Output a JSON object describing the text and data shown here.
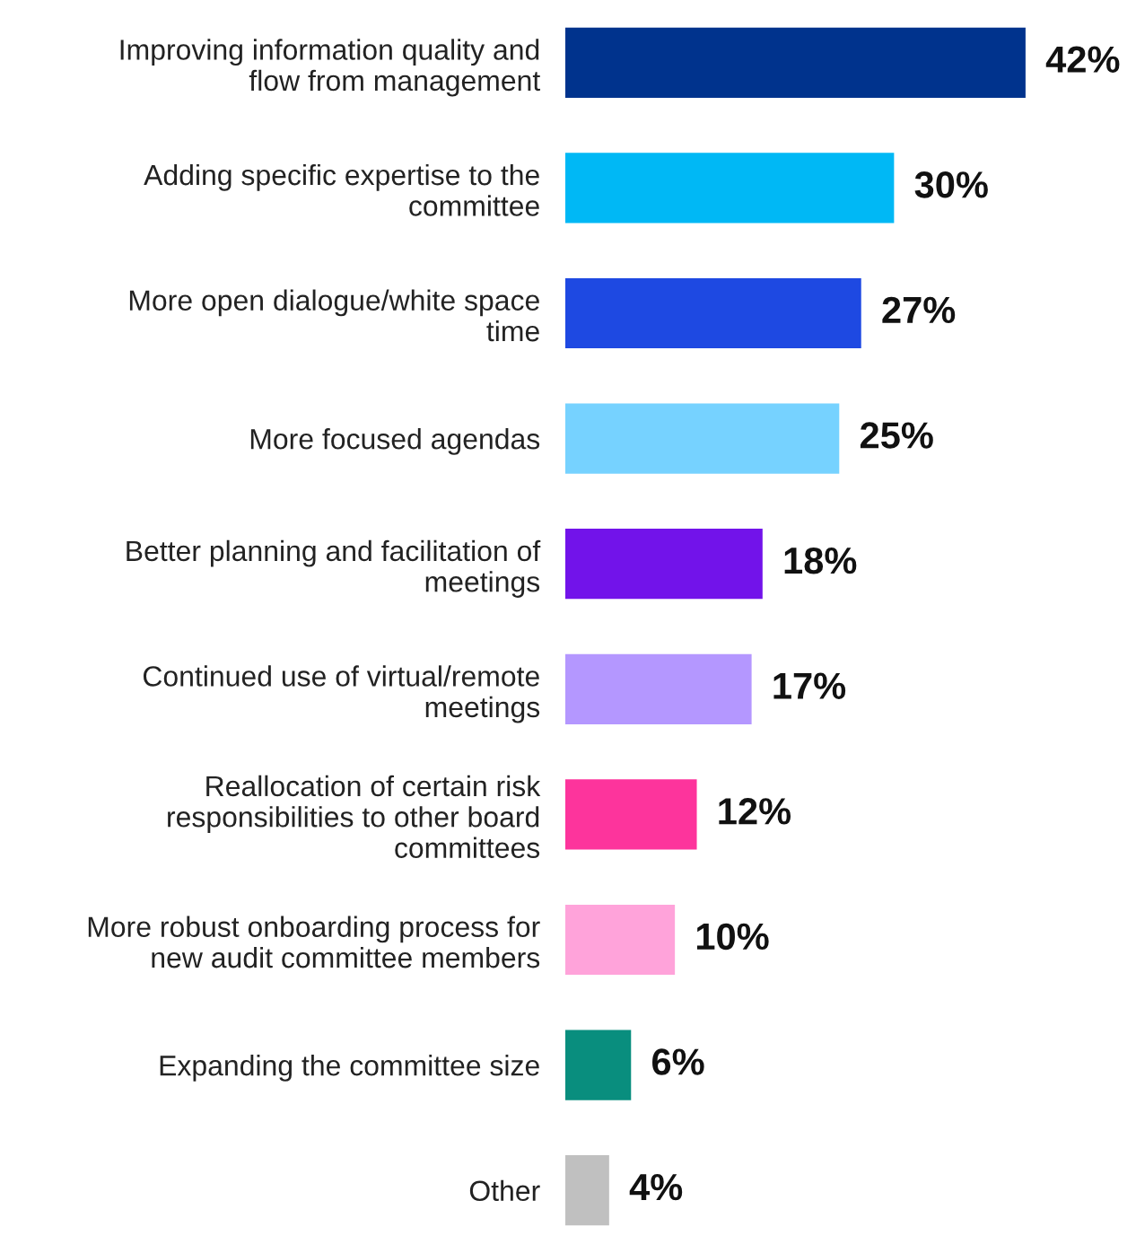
{
  "chart_data": {
    "type": "bar",
    "orientation": "horizontal",
    "categories": [
      "Improving information quality and\nflow from management",
      "Adding specific expertise to the\ncommittee",
      "More open dialogue/white space\ntime",
      "More focused agendas",
      "Better planning and facilitation of\nmeetings",
      "Continued use of virtual/remote\nmeetings",
      "Reallocation of certain risk\nresponsibilities to other board\ncommittees",
      "More robust onboarding process for\nnew audit committee members",
      "Expanding the committee size",
      "Other"
    ],
    "values": [
      42,
      30,
      27,
      25,
      18,
      17,
      12,
      10,
      6,
      4
    ],
    "value_labels": [
      "42%",
      "30%",
      "27%",
      "25%",
      "18%",
      "17%",
      "12%",
      "10%",
      "6%",
      "4%"
    ],
    "colors": [
      "#00338d",
      "#00b8f5",
      "#1e49e2",
      "#76d2ff",
      "#7213ea",
      "#b497ff",
      "#fd349c",
      "#ffa3da",
      "#098e7e",
      "#c0c0c0"
    ],
    "grid": false,
    "legend": false
  }
}
